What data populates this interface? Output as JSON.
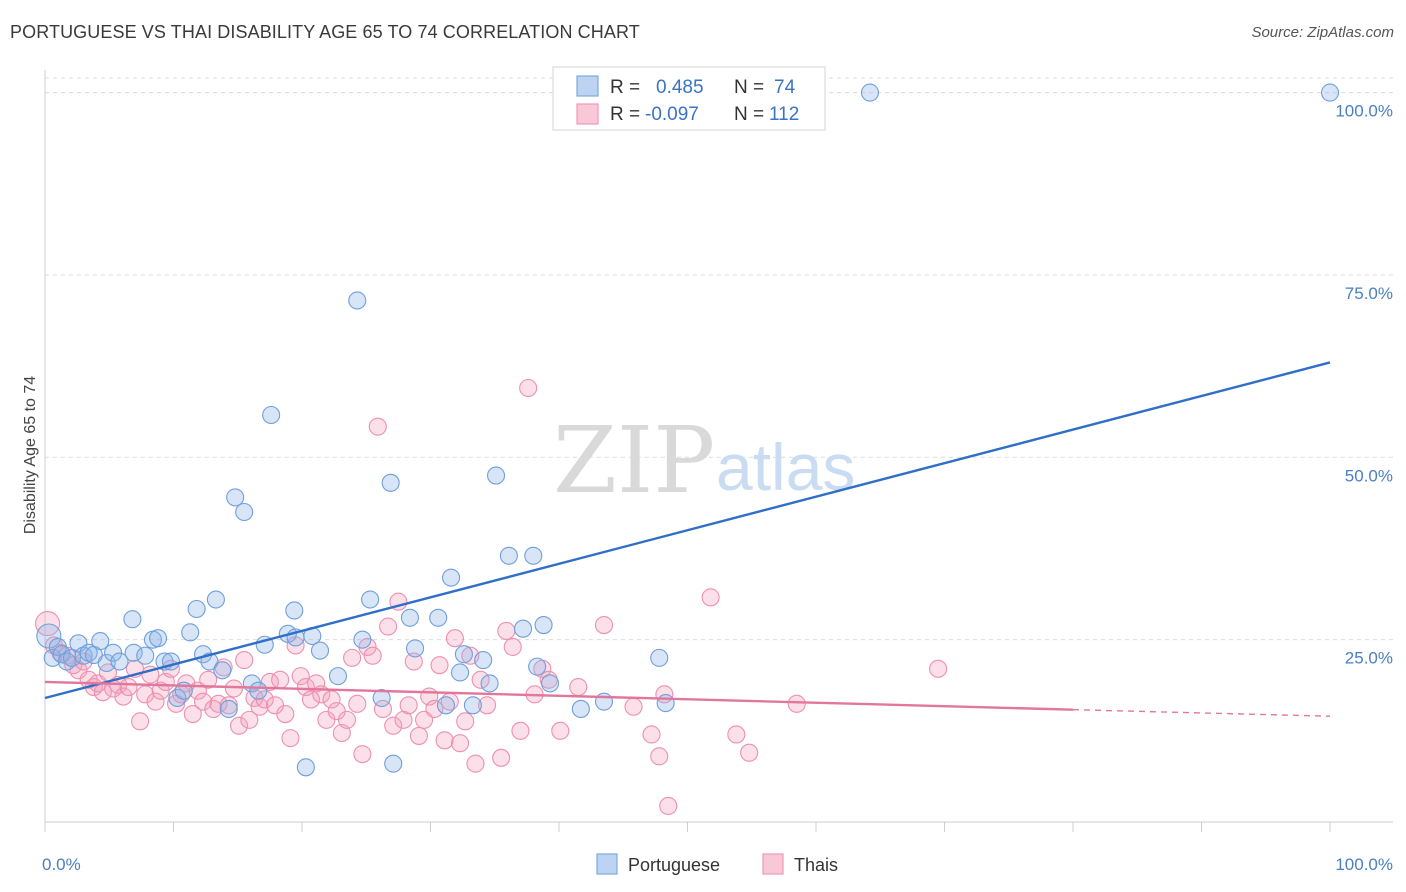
{
  "title": "PORTUGUESE VS THAI DISABILITY AGE 65 TO 74 CORRELATION CHART",
  "source": "Source: ZipAtlas.com",
  "watermark": {
    "zip": "ZIP",
    "atlas": "atlas"
  },
  "colors": {
    "portuguese": "#6f9fdc",
    "thais": "#ef8fae",
    "portuguese_line": "#2f6fc8",
    "thais_line": "#e2769d"
  },
  "legend": {
    "rows": [
      {
        "r_label": "R =",
        "r_value": "0.485",
        "n_label": "N =",
        "n_value": "74"
      },
      {
        "r_label": "R =",
        "r_value": "-0.097",
        "n_label": "N =",
        "n_value": "112"
      }
    ]
  },
  "bottom_legend": [
    "Portuguese",
    "Thais"
  ],
  "chart_data": {
    "type": "scatter",
    "title": "PORTUGUESE VS THAI DISABILITY AGE 65 TO 74 CORRELATION CHART",
    "xlabel": "",
    "ylabel": "Disability Age 65 to 74",
    "xlim": [
      0,
      100
    ],
    "ylim": [
      0,
      102
    ],
    "x_tick_labels": [
      "0.0%",
      "100.0%"
    ],
    "y_ticks": [
      25,
      50,
      75,
      100
    ],
    "y_tick_labels": [
      "25.0%",
      "50.0%",
      "75.0%",
      "100.0%"
    ],
    "grid": true,
    "series": [
      {
        "name": "Portuguese",
        "r": 0.485,
        "n": 74,
        "trend": {
          "x": [
            0,
            100
          ],
          "y": [
            17.0,
            63.0
          ]
        },
        "points": [
          [
            0.3,
            25.5
          ],
          [
            0.6,
            22.5
          ],
          [
            1.0,
            24.0
          ],
          [
            1.3,
            23.0
          ],
          [
            1.7,
            22.0
          ],
          [
            2.1,
            22.5
          ],
          [
            2.6,
            24.5
          ],
          [
            3.0,
            22.8
          ],
          [
            3.4,
            23.2
          ],
          [
            3.8,
            22.9
          ],
          [
            4.3,
            24.8
          ],
          [
            4.8,
            21.8
          ],
          [
            5.3,
            23.2
          ],
          [
            5.8,
            22.0
          ],
          [
            6.8,
            27.8
          ],
          [
            6.9,
            23.2
          ],
          [
            7.8,
            22.8
          ],
          [
            8.4,
            25.0
          ],
          [
            8.8,
            25.2
          ],
          [
            9.3,
            22.0
          ],
          [
            9.8,
            22.0
          ],
          [
            10.3,
            17.0
          ],
          [
            10.8,
            18.0
          ],
          [
            11.3,
            26.0
          ],
          [
            11.8,
            29.2
          ],
          [
            12.3,
            23.0
          ],
          [
            12.8,
            22.0
          ],
          [
            13.3,
            30.5
          ],
          [
            13.8,
            20.8
          ],
          [
            14.3,
            15.5
          ],
          [
            14.8,
            44.5
          ],
          [
            15.5,
            42.5
          ],
          [
            16.1,
            19.0
          ],
          [
            16.6,
            18.0
          ],
          [
            17.1,
            24.3
          ],
          [
            17.6,
            55.8
          ],
          [
            18.9,
            25.8
          ],
          [
            19.4,
            29.0
          ],
          [
            19.5,
            25.3
          ],
          [
            20.3,
            7.5
          ],
          [
            20.8,
            25.5
          ],
          [
            21.4,
            23.5
          ],
          [
            22.8,
            20.0
          ],
          [
            24.3,
            71.5
          ],
          [
            24.7,
            25.0
          ],
          [
            25.3,
            30.5
          ],
          [
            26.2,
            17.0
          ],
          [
            26.9,
            46.5
          ],
          [
            27.1,
            8.0
          ],
          [
            28.4,
            28.0
          ],
          [
            28.8,
            23.8
          ],
          [
            30.6,
            28.0
          ],
          [
            31.2,
            16.0
          ],
          [
            31.6,
            33.5
          ],
          [
            32.3,
            20.5
          ],
          [
            32.6,
            23.0
          ],
          [
            33.3,
            16.0
          ],
          [
            34.1,
            22.2
          ],
          [
            34.6,
            19.0
          ],
          [
            35.1,
            47.5
          ],
          [
            36.1,
            36.5
          ],
          [
            37.2,
            26.5
          ],
          [
            38.0,
            36.5
          ],
          [
            38.3,
            21.3
          ],
          [
            38.8,
            27.0
          ],
          [
            39.3,
            19.0
          ],
          [
            41.7,
            15.5
          ],
          [
            43.5,
            16.5
          ],
          [
            47.8,
            22.5
          ],
          [
            48.3,
            16.3
          ],
          [
            64.2,
            100.0
          ],
          [
            100.0,
            100.0
          ]
        ]
      },
      {
        "name": "Thais",
        "r": -0.097,
        "n": 112,
        "trend": {
          "x": [
            0,
            80
          ],
          "y": [
            19.2,
            15.4
          ],
          "dashed_to": {
            "x": 100,
            "y": 14.5
          }
        },
        "points": [
          [
            0.2,
            27.2
          ],
          [
            0.7,
            24.2
          ],
          [
            1.2,
            23.2
          ],
          [
            1.7,
            22.8
          ],
          [
            2.2,
            21.5
          ],
          [
            2.6,
            20.8
          ],
          [
            3.0,
            22.0
          ],
          [
            3.4,
            19.5
          ],
          [
            3.8,
            18.5
          ],
          [
            4.1,
            19.0
          ],
          [
            4.5,
            17.8
          ],
          [
            4.9,
            20.5
          ],
          [
            5.3,
            18.3
          ],
          [
            5.7,
            18.8
          ],
          [
            6.1,
            17.2
          ],
          [
            6.5,
            18.5
          ],
          [
            7.0,
            21.0
          ],
          [
            7.4,
            13.8
          ],
          [
            7.8,
            17.5
          ],
          [
            8.2,
            20.2
          ],
          [
            8.6,
            16.5
          ],
          [
            9.0,
            18.0
          ],
          [
            9.4,
            19.2
          ],
          [
            9.8,
            21.0
          ],
          [
            10.2,
            16.2
          ],
          [
            10.6,
            17.5
          ],
          [
            11.0,
            19.0
          ],
          [
            11.5,
            14.8
          ],
          [
            11.9,
            18.0
          ],
          [
            12.3,
            16.5
          ],
          [
            12.7,
            19.5
          ],
          [
            13.1,
            15.5
          ],
          [
            13.5,
            16.2
          ],
          [
            13.9,
            21.2
          ],
          [
            14.3,
            16.0
          ],
          [
            14.7,
            18.3
          ],
          [
            15.1,
            13.2
          ],
          [
            15.5,
            22.2
          ],
          [
            15.9,
            14.0
          ],
          [
            16.3,
            17.0
          ],
          [
            16.7,
            15.8
          ],
          [
            17.1,
            16.8
          ],
          [
            17.5,
            19.2
          ],
          [
            17.9,
            16.0
          ],
          [
            18.3,
            19.5
          ],
          [
            18.7,
            14.8
          ],
          [
            19.1,
            11.5
          ],
          [
            19.5,
            24.2
          ],
          [
            19.9,
            20.0
          ],
          [
            20.3,
            18.5
          ],
          [
            20.7,
            16.8
          ],
          [
            21.1,
            19.0
          ],
          [
            21.5,
            17.5
          ],
          [
            21.9,
            14.0
          ],
          [
            22.3,
            16.8
          ],
          [
            22.7,
            15.2
          ],
          [
            23.1,
            12.2
          ],
          [
            23.5,
            14.0
          ],
          [
            23.9,
            22.5
          ],
          [
            24.3,
            16.2
          ],
          [
            24.7,
            9.3
          ],
          [
            25.1,
            24.0
          ],
          [
            25.5,
            22.8
          ],
          [
            25.9,
            54.2
          ],
          [
            26.3,
            15.5
          ],
          [
            26.7,
            26.8
          ],
          [
            27.1,
            13.2
          ],
          [
            27.5,
            30.2
          ],
          [
            27.9,
            14.0
          ],
          [
            28.3,
            16.0
          ],
          [
            28.7,
            22.0
          ],
          [
            29.1,
            11.8
          ],
          [
            29.5,
            14.0
          ],
          [
            29.9,
            17.2
          ],
          [
            30.3,
            15.5
          ],
          [
            30.7,
            21.5
          ],
          [
            31.1,
            11.2
          ],
          [
            31.5,
            16.5
          ],
          [
            31.9,
            25.2
          ],
          [
            32.3,
            10.8
          ],
          [
            32.7,
            13.8
          ],
          [
            33.1,
            22.8
          ],
          [
            33.5,
            8.0
          ],
          [
            33.9,
            19.5
          ],
          [
            34.4,
            16.0
          ],
          [
            35.5,
            8.8
          ],
          [
            35.9,
            26.2
          ],
          [
            36.4,
            24.0
          ],
          [
            37.0,
            12.5
          ],
          [
            37.6,
            59.5
          ],
          [
            38.1,
            17.5
          ],
          [
            38.7,
            21.0
          ],
          [
            39.2,
            19.5
          ],
          [
            40.1,
            12.5
          ],
          [
            41.5,
            18.5
          ],
          [
            43.5,
            27.0
          ],
          [
            45.8,
            15.8
          ],
          [
            47.2,
            12.0
          ],
          [
            47.8,
            9.0
          ],
          [
            48.2,
            17.5
          ],
          [
            48.5,
            2.2
          ],
          [
            51.8,
            30.8
          ],
          [
            53.8,
            12.0
          ],
          [
            54.8,
            9.5
          ],
          [
            58.5,
            16.2
          ],
          [
            69.5,
            21.0
          ]
        ]
      }
    ]
  }
}
